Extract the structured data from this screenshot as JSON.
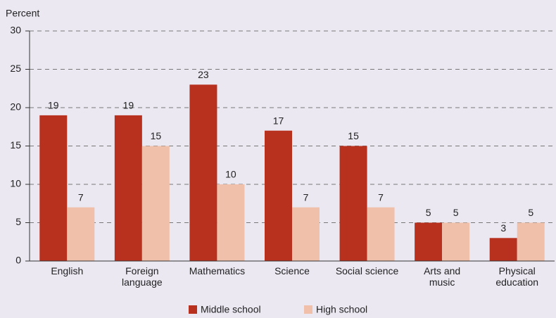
{
  "chart_data": {
    "type": "bar",
    "y_label": "Percent",
    "categories": [
      "English",
      "Foreign language",
      "Mathematics",
      "Science",
      "Social science",
      "Arts and music",
      "Physical education"
    ],
    "series": [
      {
        "name": "Middle school",
        "color": "#b8301e",
        "values": [
          19,
          19,
          23,
          17,
          15,
          5,
          3
        ]
      },
      {
        "name": "High school",
        "color": "#f0c0aa",
        "values": [
          7,
          15,
          10,
          7,
          7,
          5,
          5
        ]
      }
    ],
    "ylim": [
      0,
      30
    ],
    "yticks": [
      0,
      5,
      10,
      15,
      20,
      25,
      30
    ],
    "grid": true,
    "legend": "bottom"
  }
}
